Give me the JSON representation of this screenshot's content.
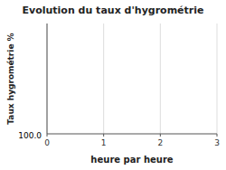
{
  "chart_data": {
    "type": "line",
    "title": "Evolution du taux d'hygrométrie",
    "xlabel": "heure par heure",
    "ylabel": "Taux hygrométrie %",
    "xlim": [
      0,
      3
    ],
    "ylim": [
      0,
      1
    ],
    "xticks": [
      0,
      1,
      2,
      3
    ],
    "yticks": [],
    "grid": true,
    "tick_labels": "x",
    "annotations": [
      "100.0"
    ]
  }
}
